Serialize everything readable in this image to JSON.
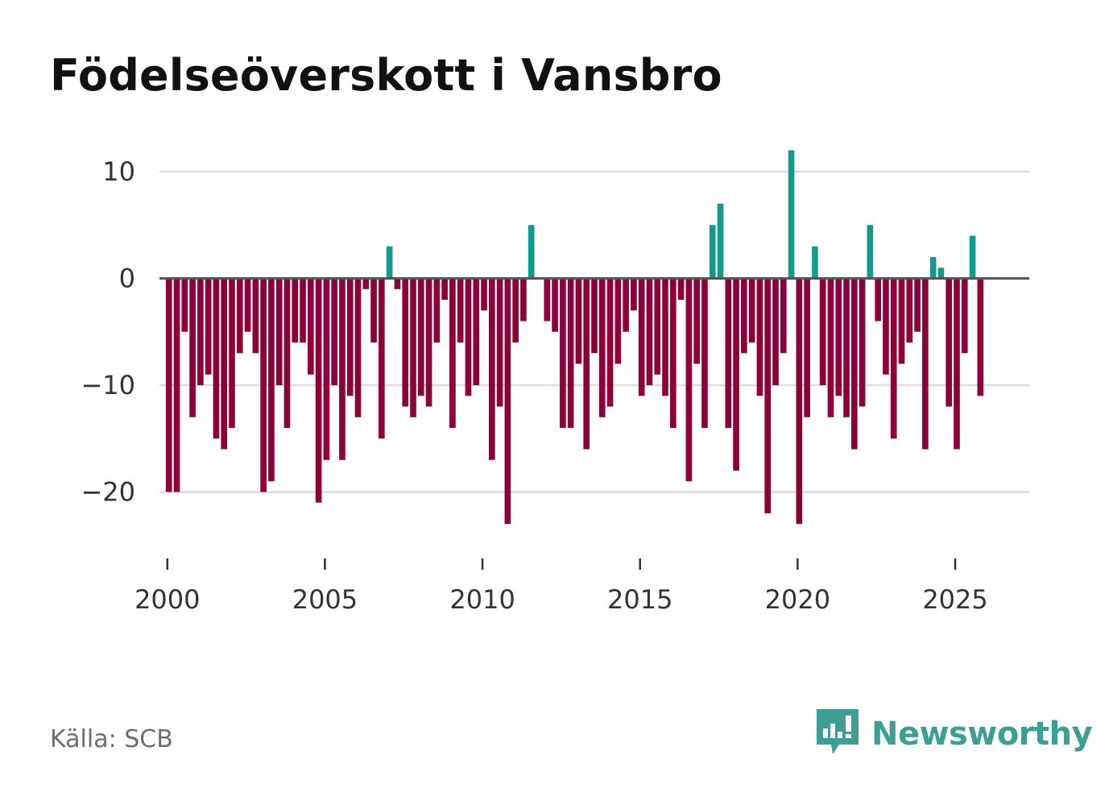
{
  "title": "Födelseöverskott i Vansbro",
  "source": "Källa: SCB",
  "brand": {
    "name": "Newsworthy",
    "icon": "newsworthy-logo-icon"
  },
  "colors": {
    "positive": "#0f9b8e",
    "negative": "#8e0038",
    "grid": "#dcdcdc",
    "zero": "#555555",
    "brand": "#3d9e94"
  },
  "chart_data": {
    "type": "bar",
    "title": "Födelseöverskott i Vansbro",
    "xlabel": "",
    "ylabel": "",
    "ylim": [
      -26,
      14
    ],
    "xlim": [
      1999.75,
      2027.35
    ],
    "yticks": [
      10,
      0,
      -10,
      -20
    ],
    "ytick_labels": [
      "10",
      "0",
      "−10",
      "−20"
    ],
    "xticks": [
      2000,
      2005,
      2010,
      2015,
      2020,
      2025
    ],
    "xtick_labels": [
      "2000",
      "2005",
      "2010",
      "2015",
      "2020",
      "2025"
    ],
    "frequency": "quarterly",
    "start": 2000,
    "values": [
      -20,
      -20,
      -5,
      -13,
      -10,
      -9,
      -15,
      -16,
      -14,
      -7,
      -5,
      -7,
      -20,
      -19,
      -10,
      -14,
      -6,
      -6,
      -9,
      -21,
      -17,
      -10,
      -17,
      -11,
      -13,
      -1,
      -6,
      -15,
      3,
      -1,
      -12,
      -13,
      -11,
      -12,
      -6,
      -2,
      -14,
      -6,
      -11,
      -10,
      -3,
      -17,
      -12,
      -23,
      -6,
      -4,
      5,
      0,
      -4,
      -5,
      -14,
      -14,
      -8,
      -16,
      -7,
      -13,
      -12,
      -8,
      -5,
      -3,
      -11,
      -10,
      -9,
      -11,
      -14,
      -2,
      -19,
      -8,
      -14,
      5,
      7,
      -14,
      -18,
      -7,
      -6,
      -11,
      -22,
      -10,
      -7,
      12,
      -23,
      -13,
      3,
      -10,
      -13,
      -11,
      -13,
      -16,
      -12,
      5,
      -4,
      -9,
      -15,
      -8,
      -6,
      -5,
      -16,
      2,
      1,
      -12,
      -16,
      -7,
      4,
      -11
    ]
  }
}
